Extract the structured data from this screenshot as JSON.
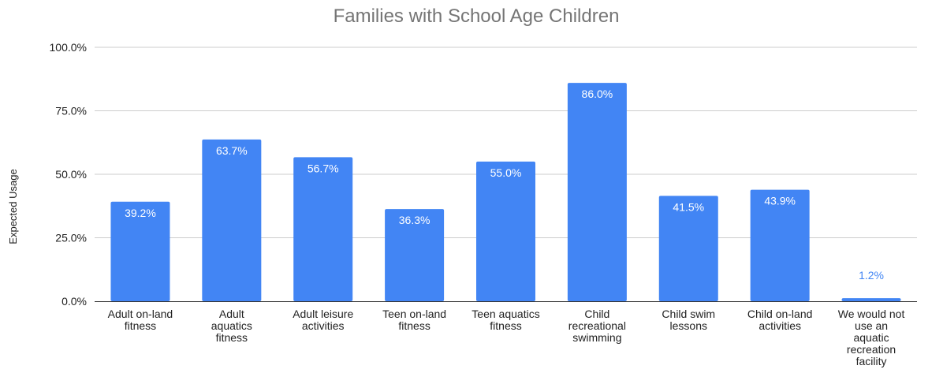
{
  "chart_data": {
    "type": "bar",
    "title": "Families with School Age Children",
    "xlabel": "",
    "ylabel": "Expected Usage",
    "ylim": [
      0,
      100
    ],
    "yticks": [
      0,
      25,
      50,
      75,
      100
    ],
    "ytick_labels": [
      "0.0%",
      "25.0%",
      "50.0%",
      "75.0%",
      "100.0%"
    ],
    "grid": true,
    "legend": "none",
    "categories": [
      [
        "Adult on-land",
        "fitness"
      ],
      [
        "Adult",
        "aquatics",
        "fitness"
      ],
      [
        "Adult leisure",
        "activities"
      ],
      [
        "Teen on-land",
        "fitness"
      ],
      [
        "Teen aquatics",
        "fitness"
      ],
      [
        "Child",
        "recreational",
        "swimming"
      ],
      [
        "Child swim",
        "lessons"
      ],
      [
        "Child on-land",
        "activities"
      ],
      [
        "We would not",
        "use an",
        "aquatic",
        "recreation",
        "facility"
      ]
    ],
    "values": [
      39.2,
      63.7,
      56.7,
      36.3,
      55.0,
      86.0,
      41.5,
      43.9,
      1.2
    ],
    "value_labels": [
      "39.2%",
      "63.7%",
      "56.7%",
      "36.3%",
      "55.0%",
      "86.0%",
      "41.5%",
      "43.9%",
      "1.2%"
    ],
    "bar_color": "#4285f4",
    "label_inside_color": "#ffffff",
    "label_outside_color": "#4285f4"
  }
}
